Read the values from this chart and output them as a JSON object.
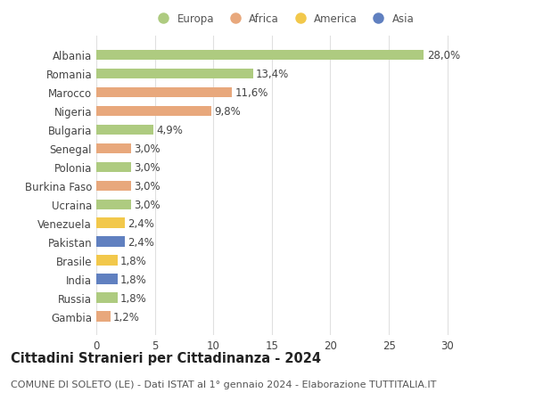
{
  "countries": [
    "Albania",
    "Romania",
    "Marocco",
    "Nigeria",
    "Bulgaria",
    "Senegal",
    "Polonia",
    "Burkina Faso",
    "Ucraina",
    "Venezuela",
    "Pakistan",
    "Brasile",
    "India",
    "Russia",
    "Gambia"
  ],
  "values": [
    28.0,
    13.4,
    11.6,
    9.8,
    4.9,
    3.0,
    3.0,
    3.0,
    3.0,
    2.4,
    2.4,
    1.8,
    1.8,
    1.8,
    1.2
  ],
  "labels": [
    "28,0%",
    "13,4%",
    "11,6%",
    "9,8%",
    "4,9%",
    "3,0%",
    "3,0%",
    "3,0%",
    "3,0%",
    "2,4%",
    "2,4%",
    "1,8%",
    "1,8%",
    "1,8%",
    "1,2%"
  ],
  "continents": [
    "Europa",
    "Europa",
    "Africa",
    "Africa",
    "Europa",
    "Africa",
    "Europa",
    "Africa",
    "Europa",
    "America",
    "Asia",
    "America",
    "Asia",
    "Europa",
    "Africa"
  ],
  "colors": {
    "Europa": "#aecb80",
    "Africa": "#e8a87c",
    "America": "#f2c84b",
    "Asia": "#6080c0"
  },
  "xlim": [
    0,
    32
  ],
  "xticks": [
    0,
    5,
    10,
    15,
    20,
    25,
    30
  ],
  "title": "Cittadini Stranieri per Cittadinanza - 2024",
  "subtitle": "COMUNE DI SOLETO (LE) - Dati ISTAT al 1° gennaio 2024 - Elaborazione TUTTITALIA.IT",
  "background_color": "#ffffff",
  "grid_color": "#e0e0e0",
  "bar_height": 0.55,
  "label_fontsize": 8.5,
  "title_fontsize": 10.5,
  "subtitle_fontsize": 8.0,
  "legend_order": [
    "Europa",
    "Africa",
    "America",
    "Asia"
  ]
}
